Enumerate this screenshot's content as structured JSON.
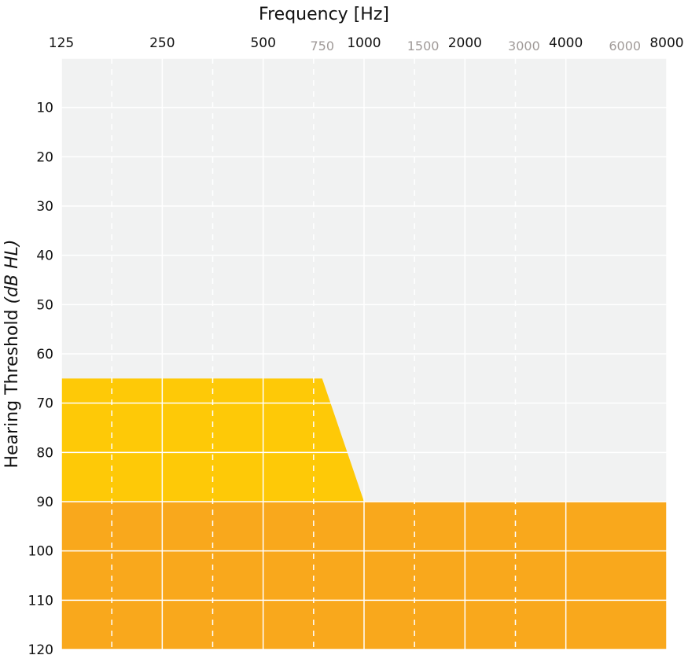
{
  "chart_data": {
    "type": "area",
    "xlabel": "Frequency [Hz]",
    "ylabel_main": "Hearing Threshold ",
    "ylabel_unit": "(dB HL)",
    "x_scale": "log2",
    "x_ticks_major": [
      125,
      250,
      500,
      1000,
      2000,
      4000,
      8000
    ],
    "x_ticks_minor": [
      750,
      1500,
      3000,
      6000
    ],
    "y_ticks": [
      10,
      20,
      30,
      40,
      50,
      60,
      70,
      80,
      90,
      100,
      110,
      120
    ],
    "ylim": [
      0,
      120
    ],
    "y_inverted": true,
    "grid": true,
    "series": [
      {
        "x": [
          125,
          750,
          1000,
          8000
        ],
        "y_top": [
          65,
          65,
          90,
          90
        ],
        "y_bottom": 120,
        "color": "#fec907"
      },
      {
        "x": [
          125,
          8000
        ],
        "y_top": [
          90,
          90
        ],
        "y_bottom": 120,
        "color": "#f9a81c"
      }
    ],
    "background_color": "#f1f2f2"
  }
}
